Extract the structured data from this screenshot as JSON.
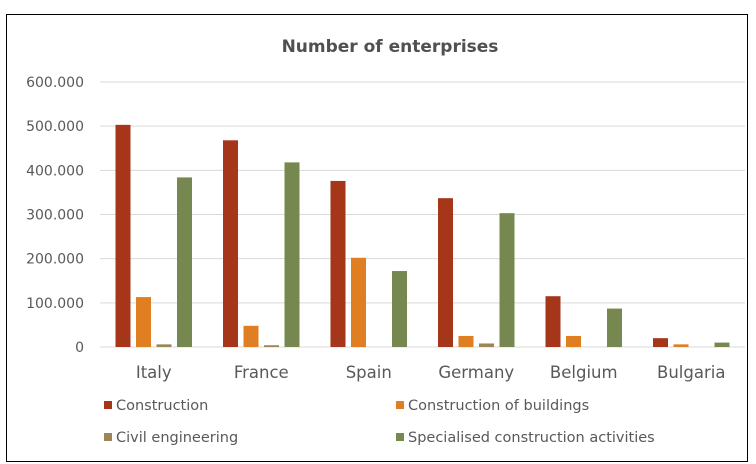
{
  "chart_data": {
    "type": "bar",
    "title": "Number of enterprises",
    "categories": [
      "Italy",
      "France",
      "Spain",
      "Germany",
      "Belgium",
      "Bulgaria"
    ],
    "series": [
      {
        "name": "Construction",
        "color": "#A5361A",
        "values": [
          503000,
          468000,
          376000,
          337000,
          115000,
          20000
        ]
      },
      {
        "name": "Construction of buildings",
        "color": "#E07F22",
        "values": [
          113000,
          48000,
          202000,
          25000,
          25000,
          6000
        ]
      },
      {
        "name": "Civil engineering",
        "color": "#9E8557",
        "values": [
          6000,
          4000,
          0,
          8000,
          0,
          0
        ]
      },
      {
        "name": "Specialised construction activities",
        "color": "#76884F",
        "values": [
          384000,
          418000,
          172000,
          303000,
          87000,
          10000
        ]
      }
    ],
    "ylim": [
      0,
      600000
    ],
    "yticks": [
      0,
      100000,
      200000,
      300000,
      400000,
      500000,
      600000
    ],
    "ytick_labels": [
      "0",
      "100.000",
      "200.000",
      "300.000",
      "400.000",
      "500.000",
      "600.000"
    ],
    "grid": true,
    "legend_position": "bottom",
    "gridline_color": "#D9D9D9"
  }
}
